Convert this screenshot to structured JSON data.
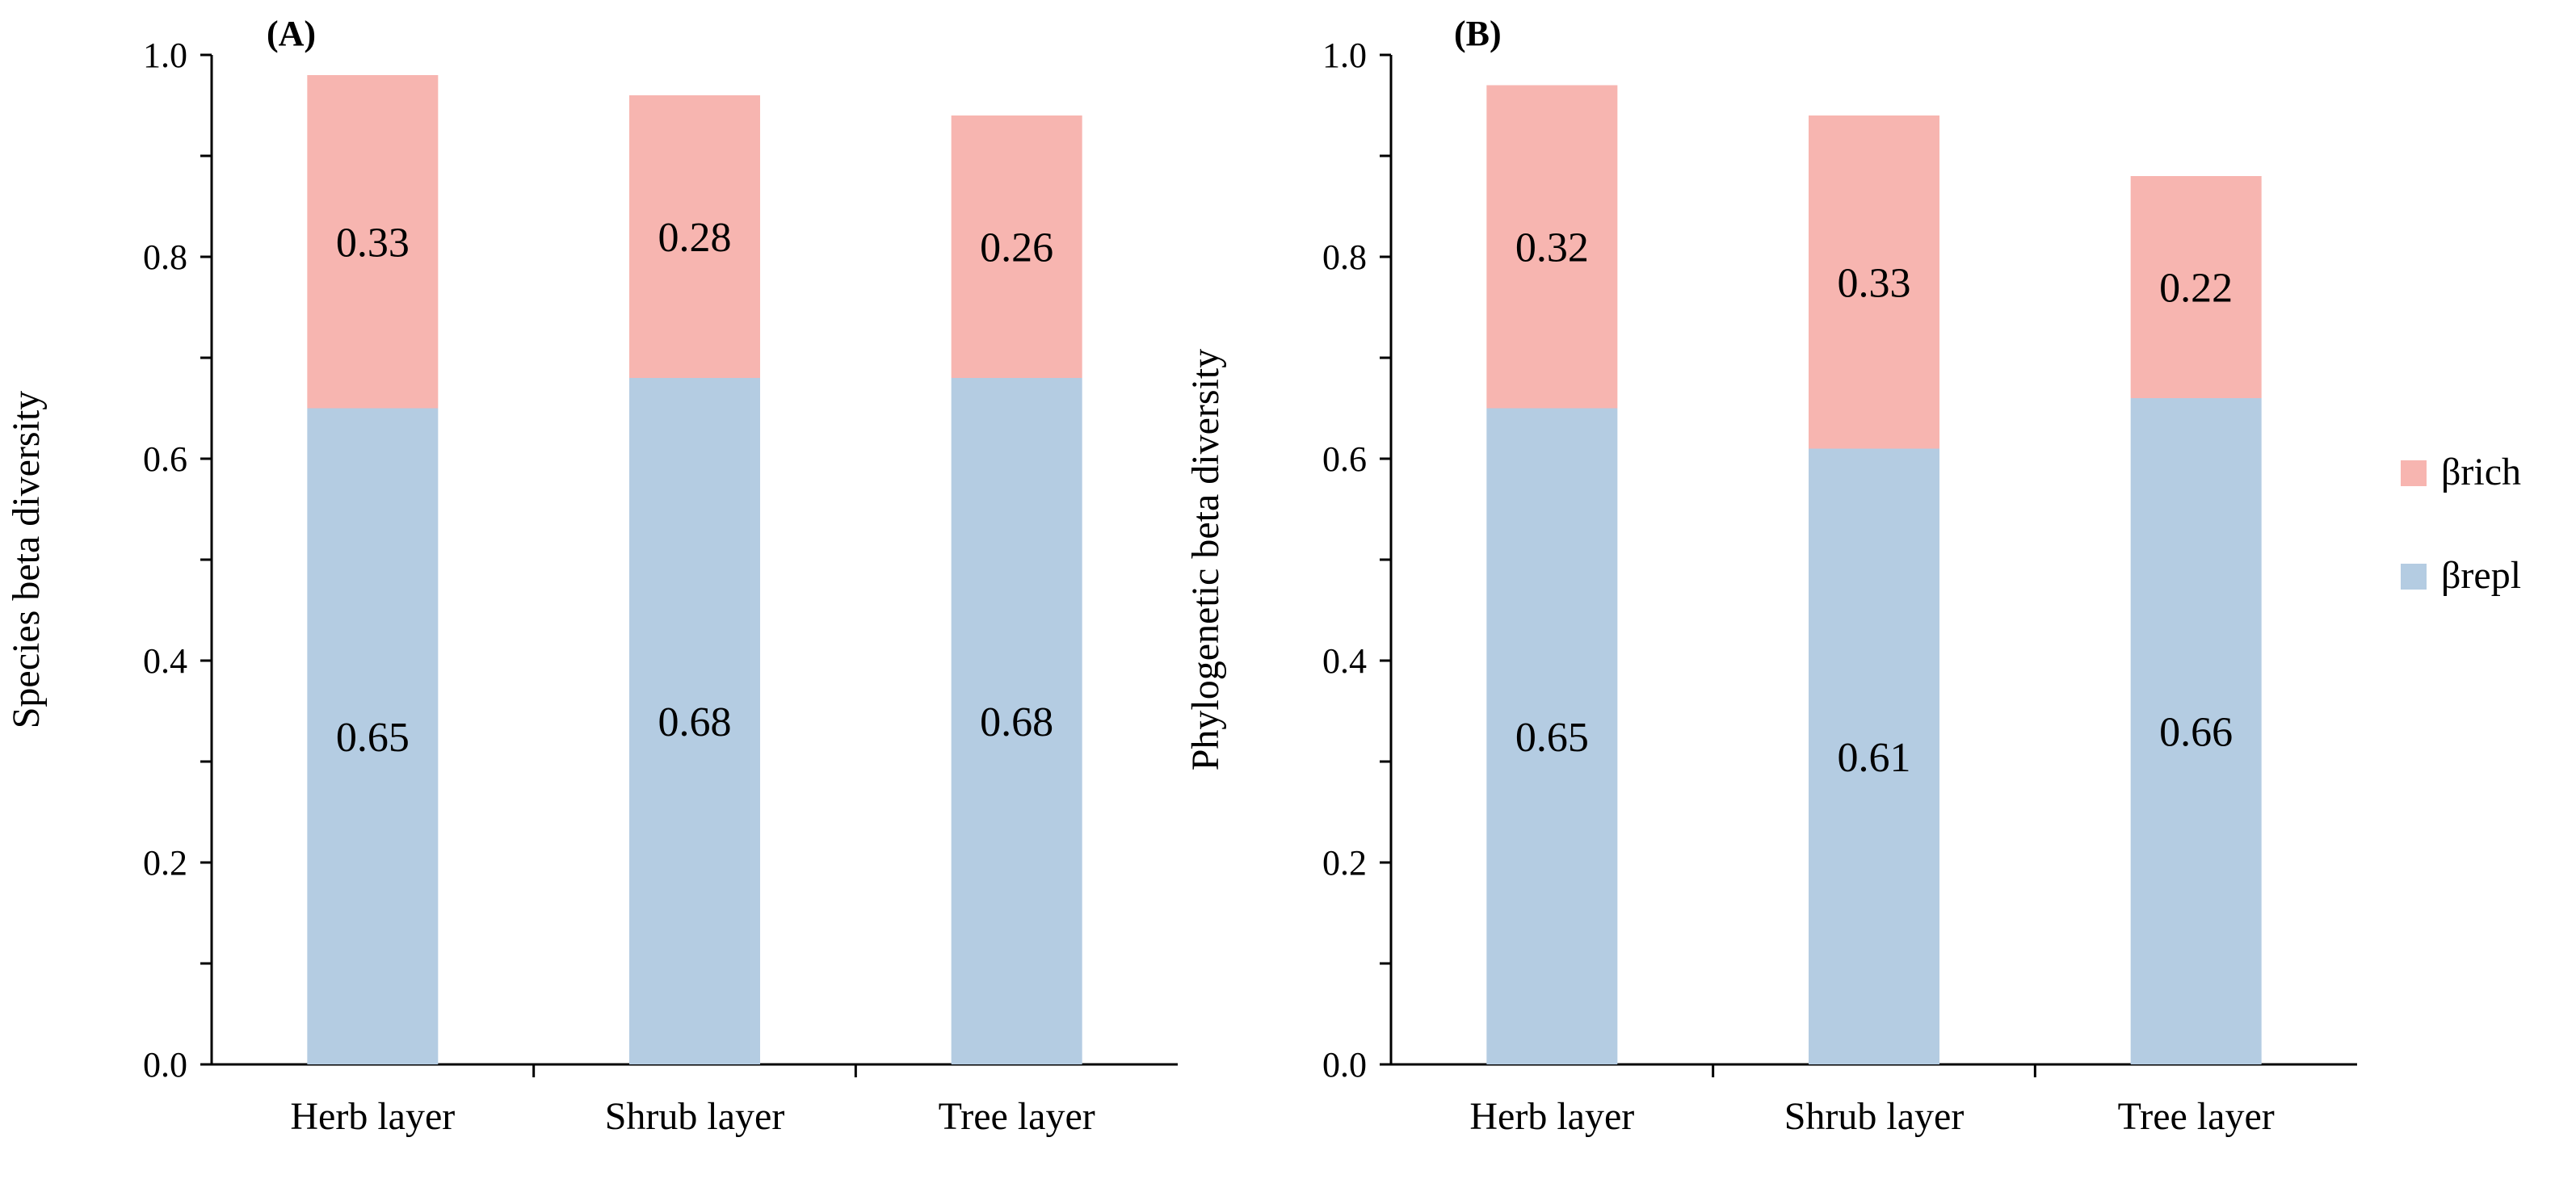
{
  "chart_data": [
    {
      "type": "bar",
      "stacked": true,
      "panel_label": "(A)",
      "ylabel": "Species beta diversity",
      "xlabel": "",
      "ylim": [
        0.0,
        1.0
      ],
      "yticks": [
        "0.0",
        "0.2",
        "0.4",
        "0.6",
        "0.8",
        "1.0"
      ],
      "categories": [
        "Herb layer",
        "Shrub layer",
        "Tree layer"
      ],
      "series": [
        {
          "name": "βrepl",
          "values": [
            0.65,
            0.68,
            0.68
          ],
          "labels": [
            "0.65",
            "0.68",
            "0.68"
          ]
        },
        {
          "name": "βrich",
          "values": [
            0.33,
            0.28,
            0.26
          ],
          "labels": [
            "0.33",
            "0.28",
            "0.26"
          ]
        }
      ]
    },
    {
      "type": "bar",
      "stacked": true,
      "panel_label": "(B)",
      "ylabel": "Phylogenetic beta diversity",
      "xlabel": "",
      "ylim": [
        0.0,
        1.0
      ],
      "yticks": [
        "0.0",
        "0.2",
        "0.4",
        "0.6",
        "0.8",
        "1.0"
      ],
      "categories": [
        "Herb layer",
        "Shrub layer",
        "Tree layer"
      ],
      "series": [
        {
          "name": "βrepl",
          "values": [
            0.65,
            0.61,
            0.66
          ],
          "labels": [
            "0.65",
            "0.61",
            "0.66"
          ]
        },
        {
          "name": "βrich",
          "values": [
            0.32,
            0.33,
            0.22
          ],
          "labels": [
            "0.32",
            "0.33",
            "0.22"
          ]
        }
      ]
    }
  ],
  "legend": {
    "position": "right",
    "items": [
      {
        "label": "βrich",
        "color": "#f7b5b0"
      },
      {
        "label": "βrepl",
        "color": "#b4cce2"
      }
    ]
  },
  "colors": {
    "βrepl": "#b4cce2",
    "βrich": "#f7b5b0",
    "axis": "#000000"
  }
}
